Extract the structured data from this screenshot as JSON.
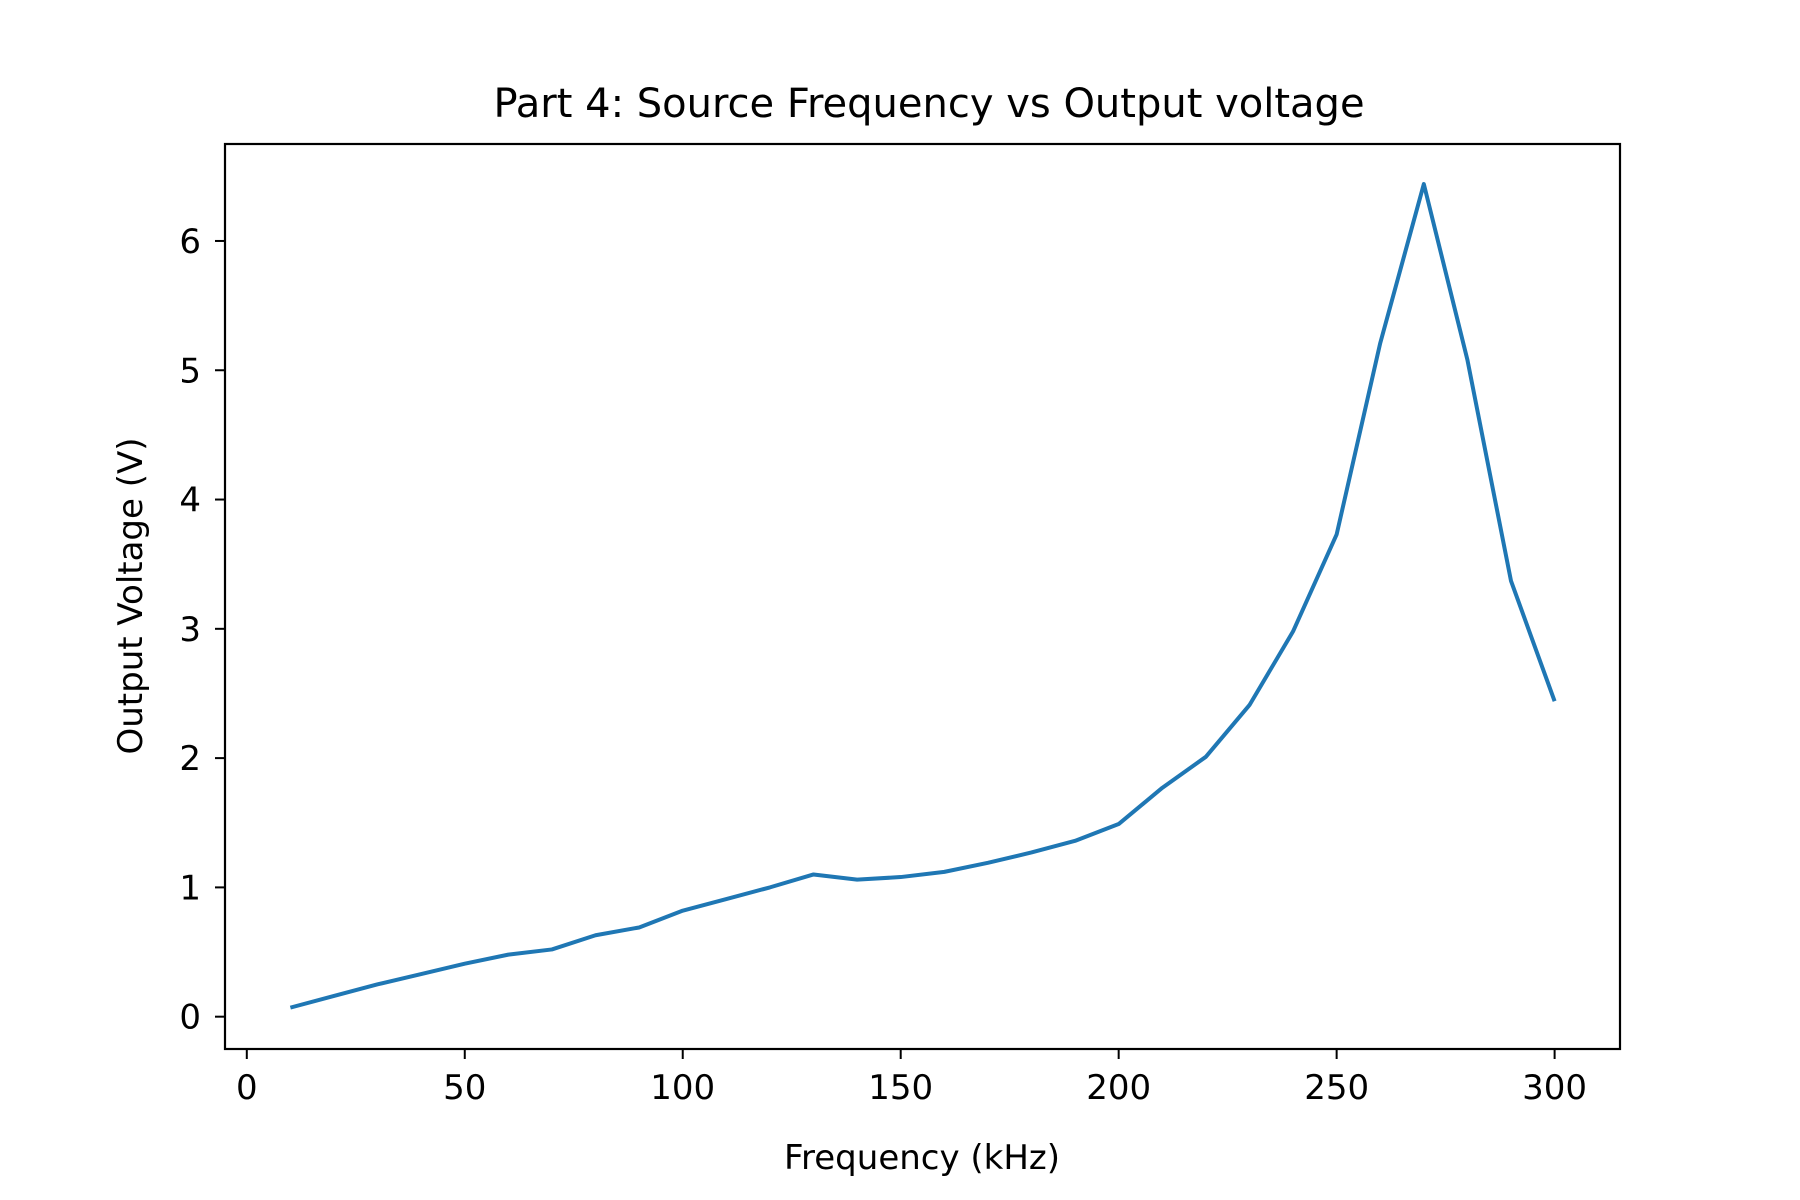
{
  "chart_data": {
    "type": "line",
    "title": "Part 4: Source Frequency vs Output voltage",
    "xlabel": "Frequency (kHz)",
    "ylabel": "Output Voltage (V)",
    "xlim": [
      -5,
      315
    ],
    "ylim": [
      -0.25,
      6.75
    ],
    "xticks": [
      0,
      50,
      100,
      150,
      200,
      250,
      300
    ],
    "yticks": [
      0,
      1,
      2,
      3,
      4,
      5,
      6
    ],
    "grid": false,
    "legend": "none",
    "series": [
      {
        "color": "#1f77b4",
        "x": [
          10,
          20,
          30,
          40,
          50,
          60,
          70,
          80,
          90,
          100,
          110,
          120,
          130,
          140,
          150,
          160,
          170,
          180,
          190,
          200,
          210,
          220,
          230,
          240,
          250,
          260,
          270,
          280,
          290,
          300
        ],
        "y": [
          0.07,
          0.16,
          0.25,
          0.33,
          0.41,
          0.48,
          0.52,
          0.63,
          0.69,
          0.82,
          0.91,
          1.0,
          1.1,
          1.06,
          1.08,
          1.12,
          1.19,
          1.27,
          1.36,
          1.49,
          1.77,
          2.01,
          2.41,
          2.98,
          3.73,
          5.21,
          6.44,
          5.08,
          3.37,
          2.44
        ]
      }
    ]
  }
}
